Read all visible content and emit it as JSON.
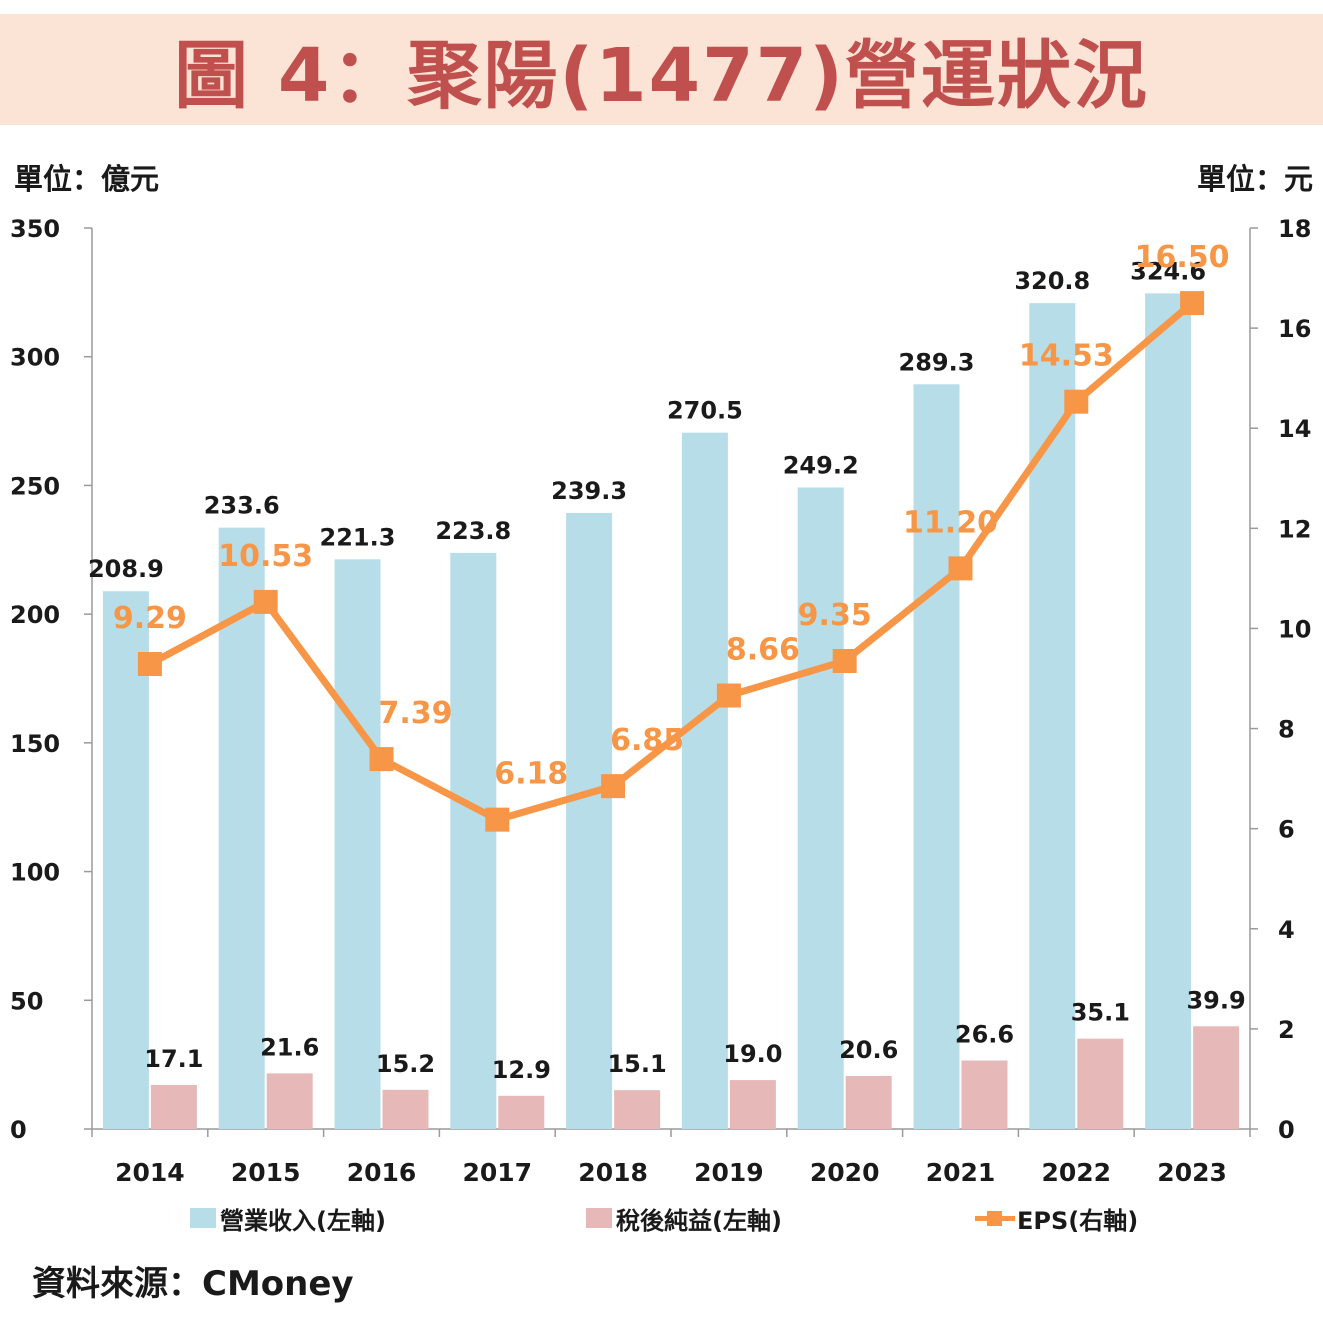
{
  "title": "圖 4：聚陽(1477)營運狀況",
  "units": {
    "left": "單位：億元",
    "right": "單位：元"
  },
  "source": "資料來源：CMoney",
  "colors": {
    "title_bg": "#fbe3d6",
    "title_text": "#c0504d",
    "revenue": "#b7dde8",
    "net_income": "#e6b9b8",
    "eps": "#f79646"
  },
  "chart_data": {
    "type": "bar",
    "categories": [
      "2014",
      "2015",
      "2016",
      "2017",
      "2018",
      "2019",
      "2020",
      "2021",
      "2022",
      "2023"
    ],
    "series": [
      {
        "name": "營業收入(左軸)",
        "type": "bar",
        "axis": "left",
        "values": [
          208.9,
          233.6,
          221.3,
          223.8,
          239.3,
          270.5,
          249.2,
          289.3,
          320.8,
          324.6
        ],
        "labels": [
          "208.9",
          "233.6",
          "221.3",
          "223.8",
          "239.3",
          "270.5",
          "249.2",
          "289.3",
          "320.8",
          "324.6"
        ]
      },
      {
        "name": "稅後純益(左軸)",
        "type": "bar",
        "axis": "left",
        "values": [
          17.1,
          21.6,
          15.2,
          12.9,
          15.1,
          19.0,
          20.6,
          26.6,
          35.1,
          39.9
        ],
        "labels": [
          "17.1",
          "21.6",
          "15.2",
          "12.9",
          "15.1",
          "19.0",
          "20.6",
          "26.6",
          "35.1",
          "39.9"
        ]
      },
      {
        "name": "EPS(右軸)",
        "type": "line",
        "axis": "right",
        "values": [
          9.29,
          10.53,
          7.39,
          6.18,
          6.85,
          8.66,
          9.35,
          11.2,
          14.53,
          16.5
        ],
        "labels": [
          "9.29",
          "10.53",
          "7.39",
          "6.18",
          "6.85",
          "8.66",
          "9.35",
          "11.20",
          "14.53",
          "16.50"
        ]
      }
    ],
    "y_left": {
      "ylim": [
        0,
        350
      ],
      "ticks": [
        "0",
        "50",
        "100",
        "150",
        "200",
        "250",
        "300",
        "350"
      ]
    },
    "y_right": {
      "ylim": [
        0,
        18
      ],
      "ticks": [
        "0",
        "2",
        "4",
        "6",
        "8",
        "10",
        "12",
        "14",
        "16",
        "18"
      ]
    },
    "grid": false,
    "legend_position": "bottom"
  }
}
